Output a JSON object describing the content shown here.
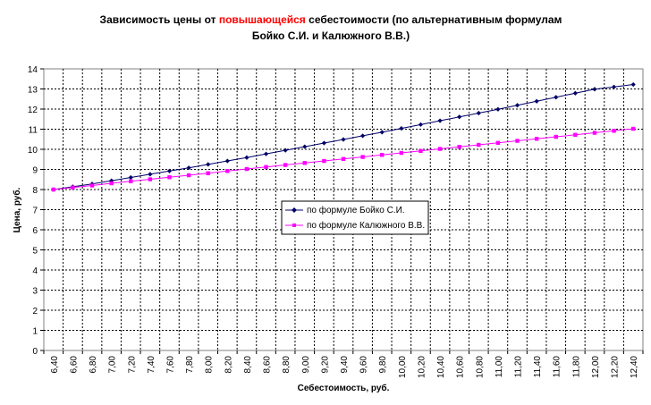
{
  "chart_data": {
    "type": "line",
    "title_parts": [
      {
        "text": "Зависимость цены от ",
        "color": "#000000"
      },
      {
        "text": "повышающейся",
        "color": "#ff0000"
      },
      {
        "text": " себестоимости (по альтернативным формулам",
        "color": "#000000"
      }
    ],
    "title_line2": "Бойко С.И. и Калюжного В.В.)",
    "xlabel": "Себестоимость, руб.",
    "ylabel": "Цена, руб.",
    "ylim": [
      0,
      14
    ],
    "yticks": [
      "0",
      "1",
      "2",
      "3",
      "4",
      "5",
      "6",
      "7",
      "8",
      "9",
      "10",
      "11",
      "12",
      "13",
      "14"
    ],
    "categories": [
      "6,40",
      "6,60",
      "6,80",
      "7,00",
      "7,20",
      "7,40",
      "7,60",
      "7,80",
      "8,00",
      "8,20",
      "8,40",
      "8,60",
      "8,80",
      "9,00",
      "9,20",
      "9,40",
      "9,60",
      "9,80",
      "10,00",
      "10,20",
      "10,40",
      "10,60",
      "10,80",
      "11,00",
      "11,20",
      "11,40",
      "11,60",
      "11,80",
      "12,00",
      "12,20",
      "12,40"
    ],
    "grid": true,
    "legend_position": "center",
    "series": [
      {
        "name": "по формуле Бойко С.И.",
        "color": "#000066",
        "marker": "diamond",
        "values": [
          8.0,
          8.14,
          8.28,
          8.44,
          8.6,
          8.76,
          8.92,
          9.08,
          9.25,
          9.42,
          9.59,
          9.77,
          9.95,
          10.13,
          10.31,
          10.49,
          10.67,
          10.85,
          11.04,
          11.23,
          11.42,
          11.61,
          11.8,
          11.99,
          12.19,
          12.39,
          12.59,
          12.79,
          12.99,
          13.1,
          13.22
        ]
      },
      {
        "name": "по формуле Калюжного В.В.",
        "color": "#ff00ff",
        "marker": "square",
        "values": [
          8.0,
          8.1,
          8.2,
          8.31,
          8.41,
          8.51,
          8.61,
          8.71,
          8.81,
          8.92,
          9.02,
          9.12,
          9.22,
          9.32,
          9.42,
          9.52,
          9.62,
          9.72,
          9.82,
          9.92,
          10.02,
          10.12,
          10.22,
          10.32,
          10.42,
          10.52,
          10.62,
          10.72,
          10.82,
          10.92,
          11.02
        ]
      }
    ]
  }
}
